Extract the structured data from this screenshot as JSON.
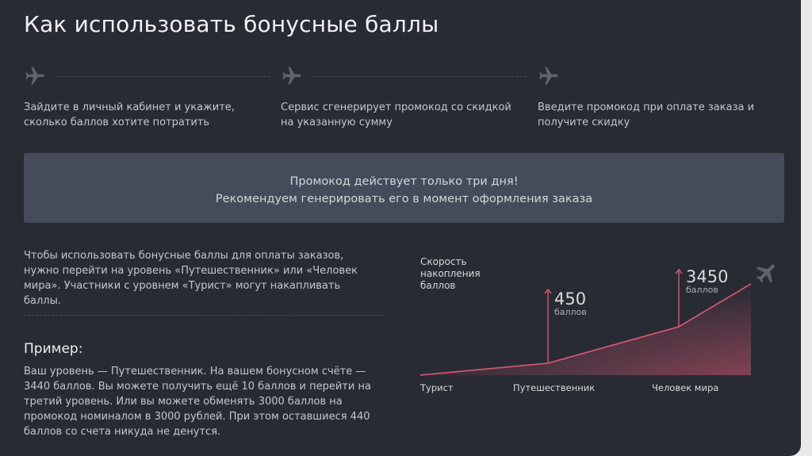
{
  "page_title": "Как использовать бонусные баллы",
  "steps": [
    {
      "icon": "plane-icon",
      "text": "Зайдите в личный кабинет и укажите, сколько баллов хотите потратить"
    },
    {
      "icon": "plane-icon",
      "text": "Сервис сгенерирует промокод со скидкой на указанную сумму"
    },
    {
      "icon": "plane-icon",
      "text": "Введите промокод при оплате заказа и получите скидку"
    }
  ],
  "notice": {
    "line1": "Промокод действует только три дня!",
    "line2": "Рекомендуем генерировать его в момент оформления заказа"
  },
  "intro_text": "Чтобы использовать бонусные баллы для оплаты заказов, нужно перейти на уровень «Путешественник» или «Человек мира». Участники с уровнем «Турист» могут накапливать баллы.",
  "example": {
    "title": "Пример:",
    "text": "Ваш уровень — Путешественник. На вашем бонусном счёте — 3440 баллов. Вы можете получить ещё 10 баллов и перейти на третий уровень. Или вы можете обменять 3000 баллов на промокод номиналом в 3000 рублей. При этом оставшиеся 440 баллов со счета никуда не денутся."
  },
  "colors": {
    "panel": "#282b34",
    "accent": "#d0566f",
    "notice_bg": "#454b59"
  },
  "chart_data": {
    "type": "area",
    "ylabel": "Скорость накопления баллов",
    "categories": [
      "Турист",
      "Путешественник",
      "Человек мира"
    ],
    "values": [
      0,
      450,
      3450
    ],
    "thresholds": [
      {
        "value": "450",
        "unit": "баллов"
      },
      {
        "value": "3450",
        "unit": "баллов"
      }
    ],
    "end_icon": "plane-icon"
  }
}
